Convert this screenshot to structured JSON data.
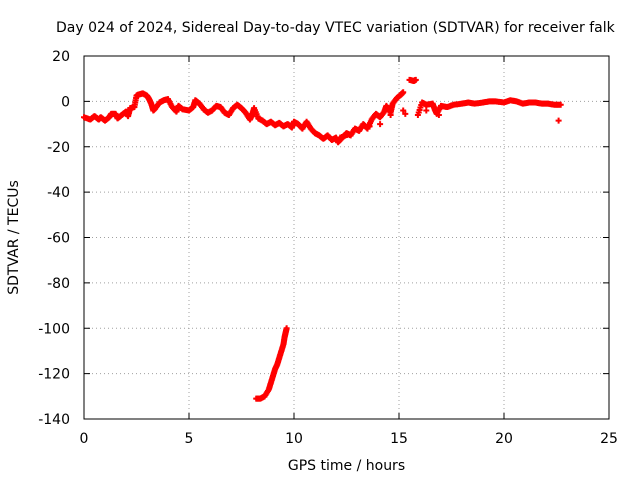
{
  "chart_data": {
    "type": "scatter",
    "title": "Day 024 of 2024, Sidereal Day-to-day VTEC variation (SDTVAR) for receiver falk",
    "xlabel": "GPS time / hours",
    "ylabel": "SDTVAR / TECUs",
    "xlim": [
      0,
      25
    ],
    "ylim": [
      -140,
      20
    ],
    "xticks": [
      0,
      5,
      10,
      15,
      20,
      25
    ],
    "yticks": [
      20,
      0,
      -20,
      -40,
      -60,
      -80,
      -100,
      -120,
      -140
    ],
    "grid": true,
    "marker": "+",
    "color": "#ff0000",
    "series": [
      {
        "name": "main-band",
        "points": [
          [
            0.0,
            -7
          ],
          [
            0.3,
            -8
          ],
          [
            0.5,
            -6.5
          ],
          [
            0.7,
            -8
          ],
          [
            0.8,
            -7
          ],
          [
            1.0,
            -8.5
          ],
          [
            1.2,
            -7
          ],
          [
            1.3,
            -5.5
          ],
          [
            1.5,
            -5.5
          ],
          [
            1.6,
            -7.5
          ],
          [
            1.8,
            -6
          ],
          [
            2.0,
            -4.5
          ],
          [
            2.1,
            -6.5
          ],
          [
            2.2,
            -3
          ],
          [
            2.4,
            -2.5
          ],
          [
            2.5,
            2.5
          ],
          [
            2.6,
            3
          ],
          [
            2.8,
            3.5
          ],
          [
            3.0,
            2.5
          ],
          [
            3.1,
            1
          ],
          [
            3.2,
            -1
          ],
          [
            3.3,
            -4
          ],
          [
            3.4,
            -3
          ],
          [
            3.6,
            -0.5
          ],
          [
            3.8,
            0.5
          ],
          [
            4.0,
            1
          ],
          [
            4.2,
            -2.5
          ],
          [
            4.4,
            -4.5
          ],
          [
            4.5,
            -2
          ],
          [
            4.7,
            -3.5
          ],
          [
            5.0,
            -4
          ],
          [
            5.2,
            -2.5
          ],
          [
            5.3,
            0.5
          ],
          [
            5.5,
            -1
          ],
          [
            5.7,
            -3.5
          ],
          [
            5.9,
            -5
          ],
          [
            6.1,
            -4
          ],
          [
            6.3,
            -2
          ],
          [
            6.5,
            -2.5
          ],
          [
            6.7,
            -5
          ],
          [
            6.9,
            -6
          ],
          [
            7.1,
            -3
          ],
          [
            7.3,
            -1.5
          ],
          [
            7.5,
            -3
          ],
          [
            7.7,
            -5
          ],
          [
            7.9,
            -8
          ],
          [
            8.0,
            -6
          ],
          [
            8.1,
            -3
          ],
          [
            8.3,
            -7.5
          ],
          [
            8.5,
            -8.5
          ],
          [
            8.7,
            -10
          ],
          [
            8.9,
            -9
          ],
          [
            9.1,
            -10.5
          ],
          [
            9.3,
            -9.5
          ],
          [
            9.5,
            -11
          ],
          [
            9.7,
            -10
          ],
          [
            9.9,
            -11.5
          ],
          [
            10.0,
            -9
          ],
          [
            10.2,
            -10
          ],
          [
            10.4,
            -12
          ],
          [
            10.6,
            -9
          ],
          [
            10.8,
            -12
          ],
          [
            11.0,
            -14
          ],
          [
            11.2,
            -15
          ],
          [
            11.4,
            -16.5
          ],
          [
            11.6,
            -15
          ],
          [
            11.8,
            -17
          ],
          [
            12.0,
            -16
          ],
          [
            12.1,
            -18
          ],
          [
            12.3,
            -16
          ],
          [
            12.5,
            -14
          ],
          [
            12.7,
            -15
          ],
          [
            12.9,
            -12
          ],
          [
            13.1,
            -13
          ],
          [
            13.3,
            -10
          ],
          [
            13.5,
            -12
          ],
          [
            13.7,
            -8
          ],
          [
            13.9,
            -5.5
          ],
          [
            14.1,
            -7
          ],
          [
            14.3,
            -4.5
          ],
          [
            14.4,
            -2
          ],
          [
            14.6,
            -5
          ],
          [
            14.7,
            -1
          ],
          [
            14.9,
            1.5
          ],
          [
            15.1,
            3
          ],
          [
            15.2,
            4
          ],
          [
            15.3,
            -5.5
          ],
          [
            15.5,
            9.5
          ],
          [
            15.7,
            9
          ],
          [
            15.8,
            9.5
          ],
          [
            15.9,
            -6
          ],
          [
            16.1,
            -0.5
          ],
          [
            16.3,
            -1.5
          ],
          [
            16.6,
            -1
          ],
          [
            16.7,
            -3.5
          ],
          [
            16.8,
            -5.5
          ],
          [
            17.0,
            -2
          ],
          [
            17.3,
            -2.5
          ],
          [
            17.6,
            -1.5
          ],
          [
            18.0,
            -1
          ],
          [
            18.3,
            -0.5
          ],
          [
            18.6,
            -1
          ],
          [
            19.0,
            -0.5
          ],
          [
            19.3,
            0
          ],
          [
            19.6,
            0
          ],
          [
            20.0,
            -0.5
          ],
          [
            20.3,
            0.5
          ],
          [
            20.6,
            0
          ],
          [
            20.9,
            -1
          ],
          [
            21.2,
            -0.5
          ],
          [
            21.5,
            -0.5
          ],
          [
            21.8,
            -1
          ],
          [
            22.1,
            -1
          ],
          [
            22.4,
            -1.5
          ],
          [
            22.7,
            -1.5
          ],
          [
            22.6,
            -8.5
          ],
          [
            15.2,
            -4
          ],
          [
            14.6,
            -6
          ],
          [
            14.1,
            -10
          ],
          [
            13.6,
            -11
          ],
          [
            13.1,
            -12.5
          ],
          [
            12.6,
            -14.5
          ],
          [
            12.2,
            -16
          ],
          [
            16.3,
            -4
          ],
          [
            16.9,
            -6
          ]
        ]
      },
      {
        "name": "outlier-trace",
        "points": [
          [
            8.2,
            -131
          ],
          [
            8.4,
            -131
          ],
          [
            8.6,
            -130
          ],
          [
            8.8,
            -127
          ],
          [
            8.9,
            -124
          ],
          [
            9.0,
            -121
          ],
          [
            9.1,
            -118
          ],
          [
            9.2,
            -116
          ],
          [
            9.3,
            -113
          ],
          [
            9.4,
            -110
          ],
          [
            9.5,
            -107
          ],
          [
            9.55,
            -104
          ],
          [
            9.6,
            -102
          ],
          [
            9.65,
            -100
          ]
        ]
      }
    ]
  }
}
